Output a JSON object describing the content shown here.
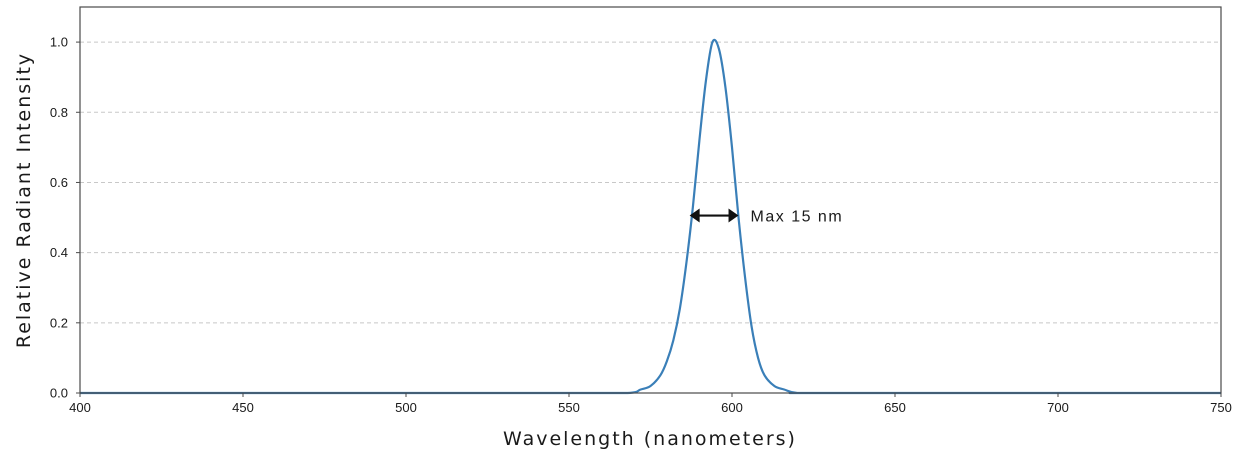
{
  "chart_data": {
    "type": "line",
    "xlabel": "Wavelength (nanometers)",
    "ylabel": "Relative Radiant Intensity",
    "xlim": [
      400,
      750
    ],
    "ylim": [
      0,
      1.1
    ],
    "x_ticks": [
      400,
      450,
      500,
      550,
      600,
      650,
      700,
      750
    ],
    "y_ticks": [
      0.0,
      0.2,
      0.4,
      0.6,
      0.8,
      1.0
    ],
    "x_tick_labels": [
      "400",
      "450",
      "500",
      "550",
      "600",
      "650",
      "700",
      "750"
    ],
    "y_tick_labels": [
      "0.0",
      "0.2",
      "0.4",
      "0.6",
      "0.8",
      "1.0"
    ],
    "grid": "horizontal dashed",
    "series": [
      {
        "color": "#3a7fb8",
        "x": [
          400,
          550,
          568,
          572,
          575,
          578,
          580,
          582,
          584,
          586,
          588,
          590,
          592,
          594,
          596,
          598,
          600,
          602,
          604,
          606,
          608,
          610,
          613,
          616,
          620,
          630,
          750
        ],
        "y": [
          0,
          0,
          0.0,
          0.01,
          0.02,
          0.05,
          0.09,
          0.15,
          0.24,
          0.37,
          0.53,
          0.72,
          0.89,
          1.0,
          0.98,
          0.87,
          0.7,
          0.5,
          0.33,
          0.19,
          0.1,
          0.05,
          0.02,
          0.01,
          0.0,
          0,
          0
        ]
      }
    ],
    "annotations": [
      {
        "text": "Max 15 nm",
        "arrow_x": [
          587,
          602
        ],
        "y": 0.5
      }
    ]
  }
}
